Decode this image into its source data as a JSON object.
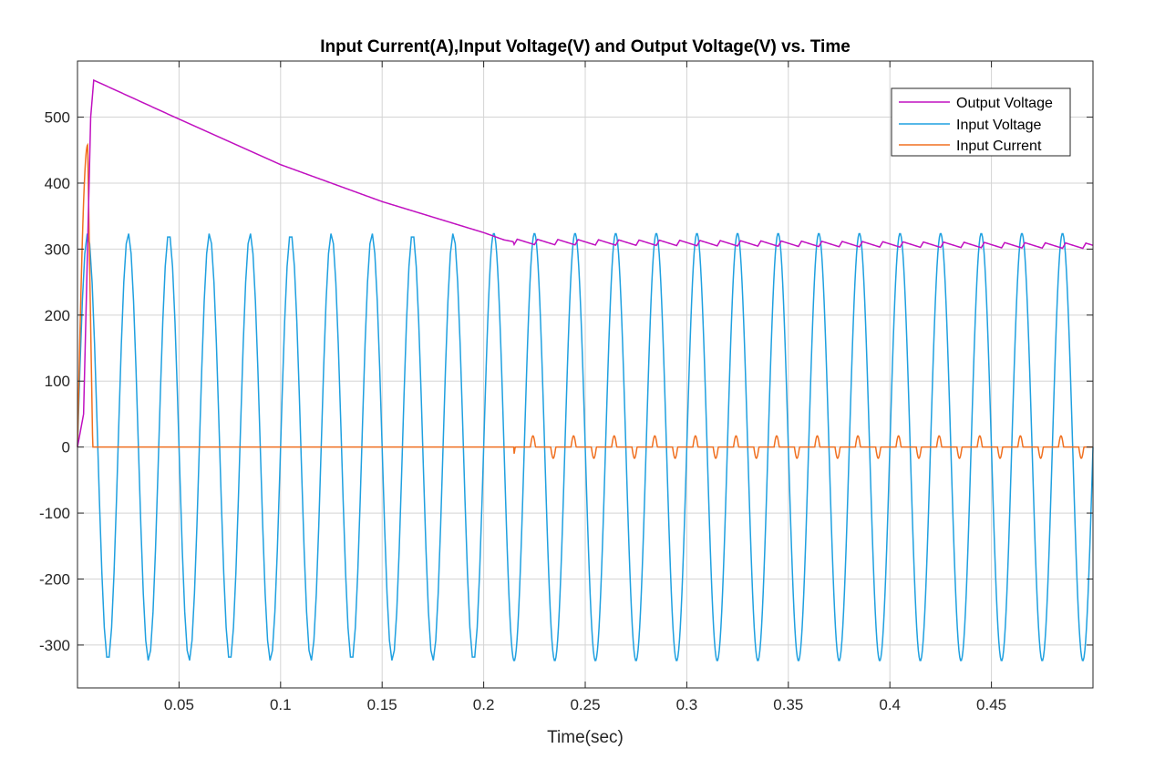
{
  "chart_data": {
    "type": "line",
    "title": "Input Current(A),Input Voltage(V) and Output Voltage(V) vs. Time",
    "xlabel": "Time(sec)",
    "ylabel": "",
    "xlim": [
      0,
      0.5
    ],
    "ylim": [
      -365,
      585
    ],
    "x_ticks": [
      0.05,
      0.1,
      0.15,
      0.2,
      0.25,
      0.3,
      0.35,
      0.4,
      0.45
    ],
    "x_tick_labels": [
      "0.05",
      "0.1",
      "0.15",
      "0.2",
      "0.25",
      "0.3",
      "0.35",
      "0.4",
      "0.45"
    ],
    "y_ticks": [
      -300,
      -200,
      -100,
      0,
      100,
      200,
      300,
      400,
      500
    ],
    "y_tick_labels": [
      "-300",
      "-200",
      "-100",
      "0",
      "100",
      "200",
      "300",
      "400",
      "500"
    ],
    "grid": true,
    "legend_position": "top-right",
    "series": [
      {
        "name": "Output Voltage",
        "color": "#c010c0",
        "description_points": [
          [
            0,
            0
          ],
          [
            0.003,
            50
          ],
          [
            0.0065,
            500
          ],
          [
            0.008,
            556
          ],
          [
            0.05,
            497
          ],
          [
            0.1,
            428
          ],
          [
            0.15,
            372
          ],
          [
            0.2,
            325
          ],
          [
            0.21,
            314
          ],
          [
            0.215,
            311
          ],
          [
            0.5,
            305
          ]
        ],
        "ripple_amplitude": 8,
        "ripple_start": 0.215,
        "ripple_period": 0.01
      },
      {
        "name": "Input Voltage",
        "color": "#1fa0e0",
        "amplitude": 324,
        "frequency_hz": 50,
        "period": 0.02
      },
      {
        "name": "Input Current",
        "color": "#f07020",
        "peak": 458,
        "peak_time": 0.005,
        "pulse_end": 0.0075,
        "pulse_amplitude": 17,
        "pulse_start": 0.215
      }
    ]
  }
}
